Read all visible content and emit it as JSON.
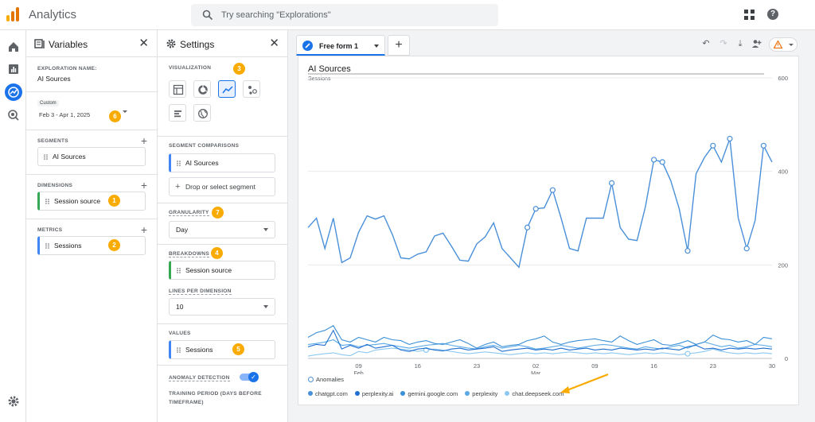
{
  "header": {
    "app_title": "Analytics",
    "search_placeholder": "Try searching \"Explorations\""
  },
  "variables": {
    "title": "Variables",
    "exploration_name_label": "EXPLORATION NAME:",
    "exploration_name": "AI Sources",
    "date_badge": "Custom",
    "date_range": "Feb 3 - Apr 1, 2025",
    "segments_label": "SEGMENTS",
    "segments": [
      "AI Sources"
    ],
    "dimensions_label": "DIMENSIONS",
    "dimensions": [
      "Session source"
    ],
    "metrics_label": "METRICS",
    "metrics": [
      "Sessions"
    ]
  },
  "settings": {
    "title": "Settings",
    "visualization_label": "VISUALIZATION",
    "segment_comparisons_label": "SEGMENT COMPARISONS",
    "segment_comparisons": [
      "AI Sources"
    ],
    "drop_segment": "Drop or select segment",
    "granularity_label": "GRANULARITY",
    "granularity": "Day",
    "breakdowns_label": "BREAKDOWNS",
    "breakdowns": [
      "Session source"
    ],
    "lines_per_dimension_label": "LINES PER DIMENSION",
    "lines_per_dimension": "10",
    "values_label": "VALUES",
    "values": [
      "Sessions"
    ],
    "anomaly_detection_label": "ANOMALY DETECTION",
    "training_period_label": "TRAINING PERIOD (DAYS BEFORE TIMEFRAME)"
  },
  "badges": {
    "dimensions": "1",
    "metrics": "2",
    "visualization": "3",
    "breakdowns": "4",
    "values": "5",
    "date": "6",
    "granularity": "7"
  },
  "tabs": [
    {
      "label": "Free form 1"
    }
  ],
  "colors": {
    "accent": "#1a73e8",
    "badge": "#f9ab00",
    "dimension": "#34a853",
    "metric": "#4285f4"
  },
  "chart_data": {
    "type": "line",
    "title": "AI Sources",
    "ylabel": "Sessions",
    "ylim": [
      0,
      600
    ],
    "yticks": [
      0,
      200,
      400,
      600
    ],
    "xtick_labels": [
      {
        "day": 6,
        "label": "09",
        "sub": "Feb"
      },
      {
        "day": 13,
        "label": "16",
        "sub": ""
      },
      {
        "day": 20,
        "label": "23",
        "sub": ""
      },
      {
        "day": 27,
        "label": "02",
        "sub": "Mar"
      },
      {
        "day": 34,
        "label": "09",
        "sub": ""
      },
      {
        "day": 41,
        "label": "16",
        "sub": ""
      },
      {
        "day": 48,
        "label": "23",
        "sub": ""
      },
      {
        "day": 55,
        "label": "30",
        "sub": ""
      }
    ],
    "legend_anomalies": "Anomalies",
    "series": [
      {
        "name": "chatgpt.com",
        "color": "#4a90d9",
        "values": [
          280,
          300,
          235,
          300,
          205,
          215,
          270,
          305,
          298,
          305,
          265,
          215,
          213,
          223,
          228,
          262,
          268,
          240,
          210,
          208,
          245,
          260,
          290,
          235,
          215,
          195,
          280,
          320,
          322,
          360,
          300,
          235,
          230,
          300,
          300,
          300,
          375,
          280,
          255,
          252,
          325,
          425,
          420,
          380,
          320,
          230,
          395,
          430,
          455,
          420,
          470,
          300,
          235,
          295,
          455,
          420
        ],
        "anomalies": [
          26,
          27,
          29,
          36,
          41,
          42,
          45,
          48,
          50,
          52,
          54
        ]
      },
      {
        "name": "perplexity.ai",
        "color": "#1f6fd0",
        "values": [
          25,
          30,
          28,
          60,
          20,
          28,
          22,
          30,
          22,
          25,
          28,
          18,
          15,
          20,
          22,
          18,
          16,
          20,
          22,
          18,
          20,
          22,
          25,
          15,
          18,
          20,
          22,
          18,
          20,
          18,
          22,
          18,
          20,
          22,
          18,
          20,
          18,
          22,
          20,
          18,
          20,
          18,
          22,
          20,
          18,
          25,
          28,
          20,
          22,
          18,
          22,
          20,
          22,
          20,
          22,
          20
        ],
        "anomalies": []
      },
      {
        "name": "gemini.google.com",
        "color": "#3b8fd6",
        "values": [
          45,
          55,
          60,
          70,
          40,
          35,
          45,
          40,
          35,
          45,
          40,
          38,
          30,
          35,
          38,
          32,
          30,
          35,
          40,
          32,
          22,
          30,
          35,
          25,
          28,
          30,
          38,
          42,
          48,
          35,
          30,
          35,
          38,
          40,
          42,
          38,
          35,
          48,
          38,
          30,
          35,
          40,
          30,
          28,
          32,
          38,
          30,
          35,
          50,
          42,
          40,
          35,
          38,
          30,
          45,
          42
        ],
        "anomalies": []
      },
      {
        "name": "perplexity",
        "color": "#5aa9e6",
        "values": [
          30,
          32,
          35,
          40,
          28,
          30,
          25,
          28,
          30,
          32,
          28,
          25,
          22,
          25,
          28,
          30,
          32,
          28,
          25,
          22,
          20,
          25,
          28,
          22,
          25,
          28,
          25,
          20,
          22,
          25,
          28,
          25,
          22,
          25,
          28,
          30,
          28,
          25,
          22,
          20,
          25,
          22,
          20,
          25,
          28,
          22,
          30,
          35,
          30,
          25,
          28,
          22,
          25,
          30,
          28,
          25
        ],
        "anomalies": []
      },
      {
        "name": "chat.deepseek.com",
        "color": "#8cc8f0",
        "values": [
          5,
          8,
          10,
          12,
          8,
          6,
          15,
          12,
          18,
          20,
          22,
          20,
          18,
          15,
          18,
          20,
          18,
          15,
          12,
          10,
          12,
          14,
          12,
          10,
          8,
          10,
          12,
          10,
          12,
          10,
          12,
          14,
          12,
          10,
          12,
          10,
          12,
          10,
          8,
          10,
          12,
          10,
          12,
          10,
          8,
          10,
          12,
          15,
          20,
          15,
          12,
          10,
          12,
          10,
          12,
          10
        ],
        "anomalies": [
          14,
          45
        ]
      }
    ]
  }
}
